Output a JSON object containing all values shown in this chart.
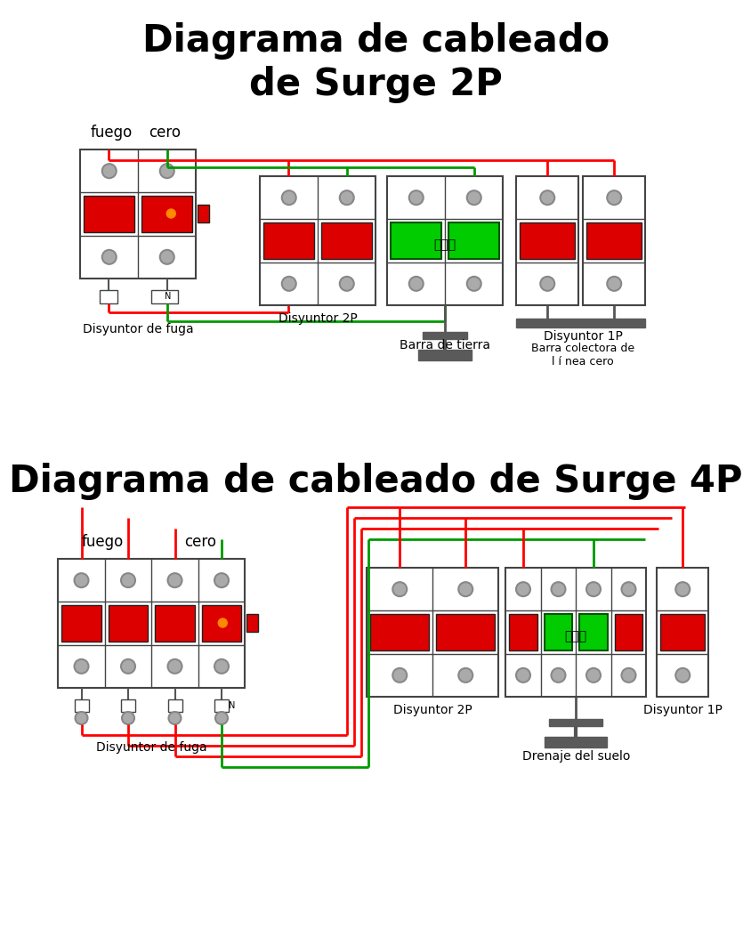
{
  "title_2p": "Diagrama de cableado\nde Surge 2P",
  "title_4p": "Diagrama de cableado de Surge 4P",
  "bg_color": "#ffffff",
  "red": "#ff0000",
  "green": "#009900",
  "orange": "#ff8800",
  "black": "#000000",
  "box_border": "#444444",
  "green_fill": "#00cc00",
  "red_fill": "#dd0000",
  "dark_fill": "#555555",
  "ground_bar": "#5a5a5a",
  "gray_circ": "#aaaaaa",
  "gray_circ_ec": "#888888",
  "white": "#ffffff"
}
